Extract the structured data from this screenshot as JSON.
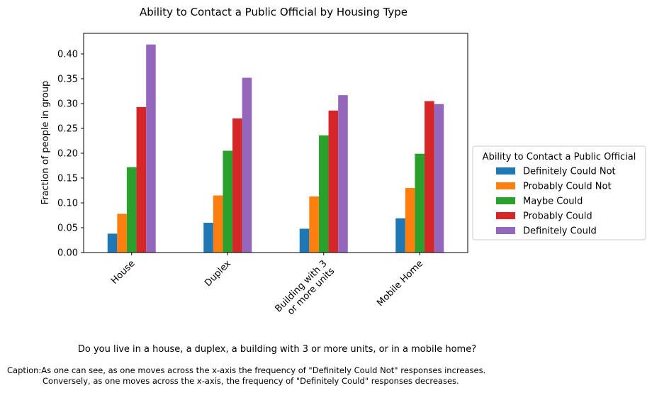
{
  "chart_data": {
    "type": "bar",
    "title": "Ability to Contact a Public Official by Housing Type",
    "xlabel": "Do you live in a house, a duplex, a building with 3 or more units, or in a mobile home?",
    "ylabel": "Fraction of people in group",
    "categories": [
      "House",
      "Duplex",
      "Building with 3\nor more units",
      "Mobile Home"
    ],
    "ylim": [
      0,
      0.44
    ],
    "yticks": [
      "0.00",
      "0.05",
      "0.10",
      "0.15",
      "0.20",
      "0.25",
      "0.30",
      "0.35",
      "0.40"
    ],
    "grid": false,
    "legend": {
      "title": "Ability to Contact a Public Official",
      "placement": "outside-right"
    },
    "series": [
      {
        "name": "Definitely Could Not",
        "color": "#1f77b4",
        "values": [
          0.038,
          0.06,
          0.048,
          0.069
        ]
      },
      {
        "name": "Probably Could Not",
        "color": "#ff7f0e",
        "values": [
          0.078,
          0.115,
          0.113,
          0.13
        ]
      },
      {
        "name": "Maybe Could",
        "color": "#2ca02c",
        "values": [
          0.172,
          0.205,
          0.236,
          0.199
        ]
      },
      {
        "name": "Probably Could",
        "color": "#d62728",
        "values": [
          0.293,
          0.27,
          0.286,
          0.305
        ]
      },
      {
        "name": "Definitely Could",
        "color": "#9467bd",
        "values": [
          0.419,
          0.352,
          0.317,
          0.299
        ]
      }
    ]
  },
  "caption": {
    "line1": "Caption:As one can see, as one moves across the x-axis the frequency of \"Definitely Could Not\" responses increases.",
    "line2": "Conversely, as one moves across the x-axis, the frequency of \"Definitely Could\" responses decreases."
  }
}
